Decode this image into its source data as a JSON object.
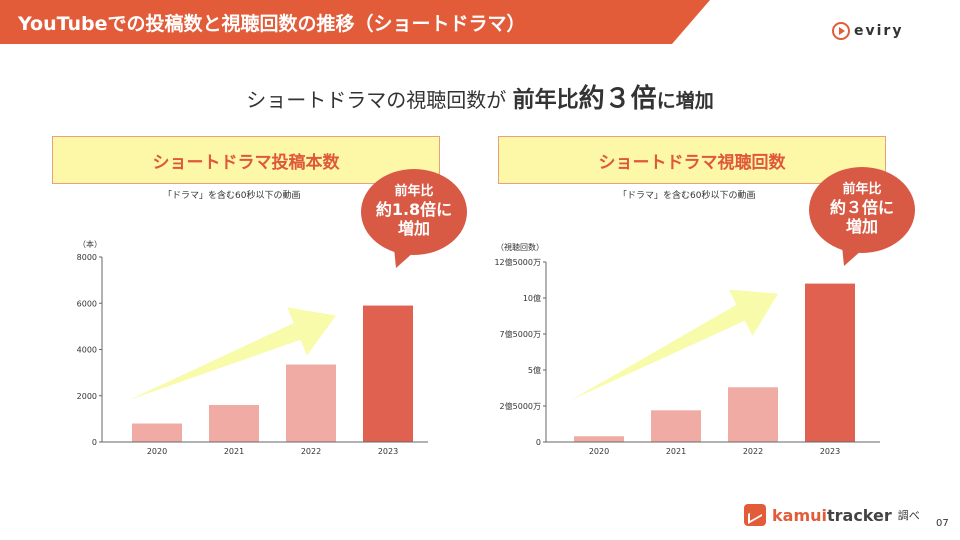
{
  "title": "YouTubeでの投稿数と視聴回数の推移（ショートドラマ）",
  "logo_text": "eviry",
  "headline": {
    "part1": "ショートドラマの視聴回数が ",
    "part2": "前年比",
    "part3": "約３倍",
    "part4": "に増加"
  },
  "colors": {
    "accent": "#e35c3a",
    "panel_bg": "#fdf7a8",
    "bar_light": "#f0aca4",
    "bar_dark": "#e0614f",
    "arrow": "#f7fba0"
  },
  "panels": [
    {
      "heading": "ショートドラマ投稿本数",
      "caption": "「ドラマ」を含む60秒以下の動画",
      "badge": {
        "line1": "前年比",
        "line2": "約1.8倍に",
        "line3": "増加"
      }
    },
    {
      "heading": "ショートドラマ視聴回数",
      "caption": "「ドラマ」を含む60秒以下の動画",
      "badge": {
        "line1": "前年比",
        "line2": "約３倍に",
        "line3": "増加"
      }
    }
  ],
  "chart_data": [
    {
      "type": "bar",
      "categories": [
        "2020",
        "2021",
        "2022",
        "2023"
      ],
      "values": [
        800,
        1600,
        3350,
        5900
      ],
      "ylabel": "（本）",
      "ylim": [
        0,
        8000
      ],
      "yticks": [
        0,
        2000,
        4000,
        6000,
        8000
      ],
      "ytick_labels": [
        "0",
        "2000",
        "4000",
        "6000",
        "8000"
      ],
      "highlight_index": 3,
      "grid": false
    },
    {
      "type": "bar",
      "categories": [
        "2020",
        "2021",
        "2022",
        "2023"
      ],
      "values": [
        40000000,
        220000000,
        380000000,
        1100000000
      ],
      "ylabel": "（視聴回数）",
      "ylim": [
        0,
        1250000000
      ],
      "yticks": [
        0,
        250000000,
        500000000,
        750000000,
        1000000000,
        1250000000
      ],
      "ytick_labels": [
        "0",
        "2億5000万",
        "5億",
        "7億5000万",
        "10億",
        "12億5000万"
      ],
      "highlight_index": 3,
      "grid": false
    }
  ],
  "footer": {
    "brand_part1": "kamui",
    "brand_part2": "tracker",
    "suffix": "調べ"
  },
  "page_number": "07"
}
